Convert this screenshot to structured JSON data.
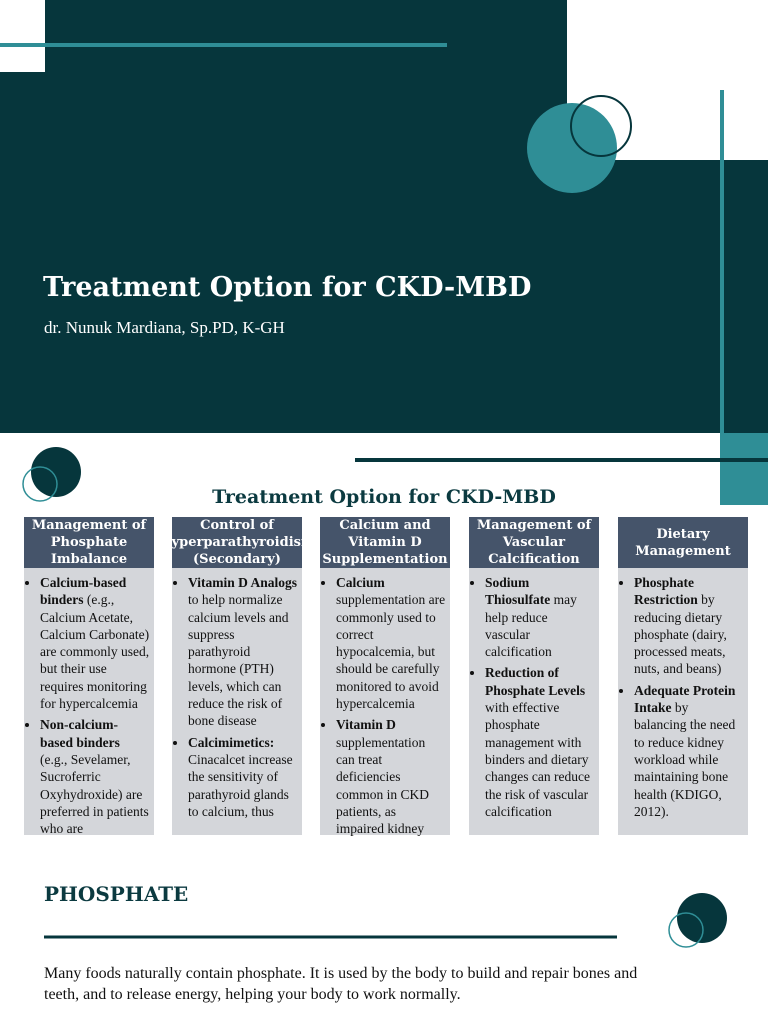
{
  "header": {
    "title": "Treatment Option for CKD-MBD",
    "author": "dr. Nunuk Mardiana, Sp.PD, K-GH"
  },
  "section": {
    "title": "Treatment Option for CKD-MBD",
    "columns": [
      {
        "heading": "Management of Phosphate Imbalance",
        "items": [
          {
            "bold": "Calcium-based binders",
            "text": "(e.g., Calcium Acetate, Calcium Carbonate) are commonly used, but their use requires monitoring for hypercalcemia"
          },
          {
            "bold": "Non-calcium-based binders",
            "text": "(e.g., Sevelamer, Sucroferric Oxyhydroxide) are preferred in patients who are"
          }
        ]
      },
      {
        "heading": "Control of Hyperparathyroidism (Secondary)",
        "items": [
          {
            "bold": "Vitamin D Analogs",
            "text": "to help normalize calcium levels and suppress parathyroid hormone (PTH) levels, which can reduce the risk of bone disease"
          },
          {
            "bold": "Calcimimetics:",
            "text": "Cinacalcet increase the sensitivity of parathyroid glands to calcium, thus"
          }
        ]
      },
      {
        "heading": "Calcium and Vitamin D Supplementation",
        "items": [
          {
            "bold": "Calcium",
            "text": "supplementation are commonly used to correct hypocalcemia, but should be carefully monitored to avoid hypercalcemia"
          },
          {
            "bold": "Vitamin D",
            "text": "supplementation can treat deficiencies common in CKD patients, as impaired kidney"
          }
        ]
      },
      {
        "heading": "Management of Vascular Calcification",
        "items": [
          {
            "bold": "Sodium Thiosulfate",
            "text": "may help reduce vascular calcification"
          },
          {
            "bold": "Reduction of Phosphate Levels",
            "text": "with effective phosphate management with binders and dietary changes can reduce the risk of vascular calcification"
          }
        ]
      },
      {
        "heading": "Dietary Management",
        "items": [
          {
            "bold": "Phosphate Restriction",
            "text": "by reducing dietary phosphate (dairy, processed meats, nuts, and beans)"
          },
          {
            "bold": "Adequate Protein Intake",
            "text": "by balancing the need to reduce kidney workload while maintaining bone health (KDIGO, 2012)."
          }
        ]
      }
    ]
  },
  "phosphate": {
    "title": "PHOSPHATE",
    "text": "Many foods naturally contain phosphate. It is used by the body to build and repair bones and teeth, and to release energy, helping your body to work normally."
  }
}
